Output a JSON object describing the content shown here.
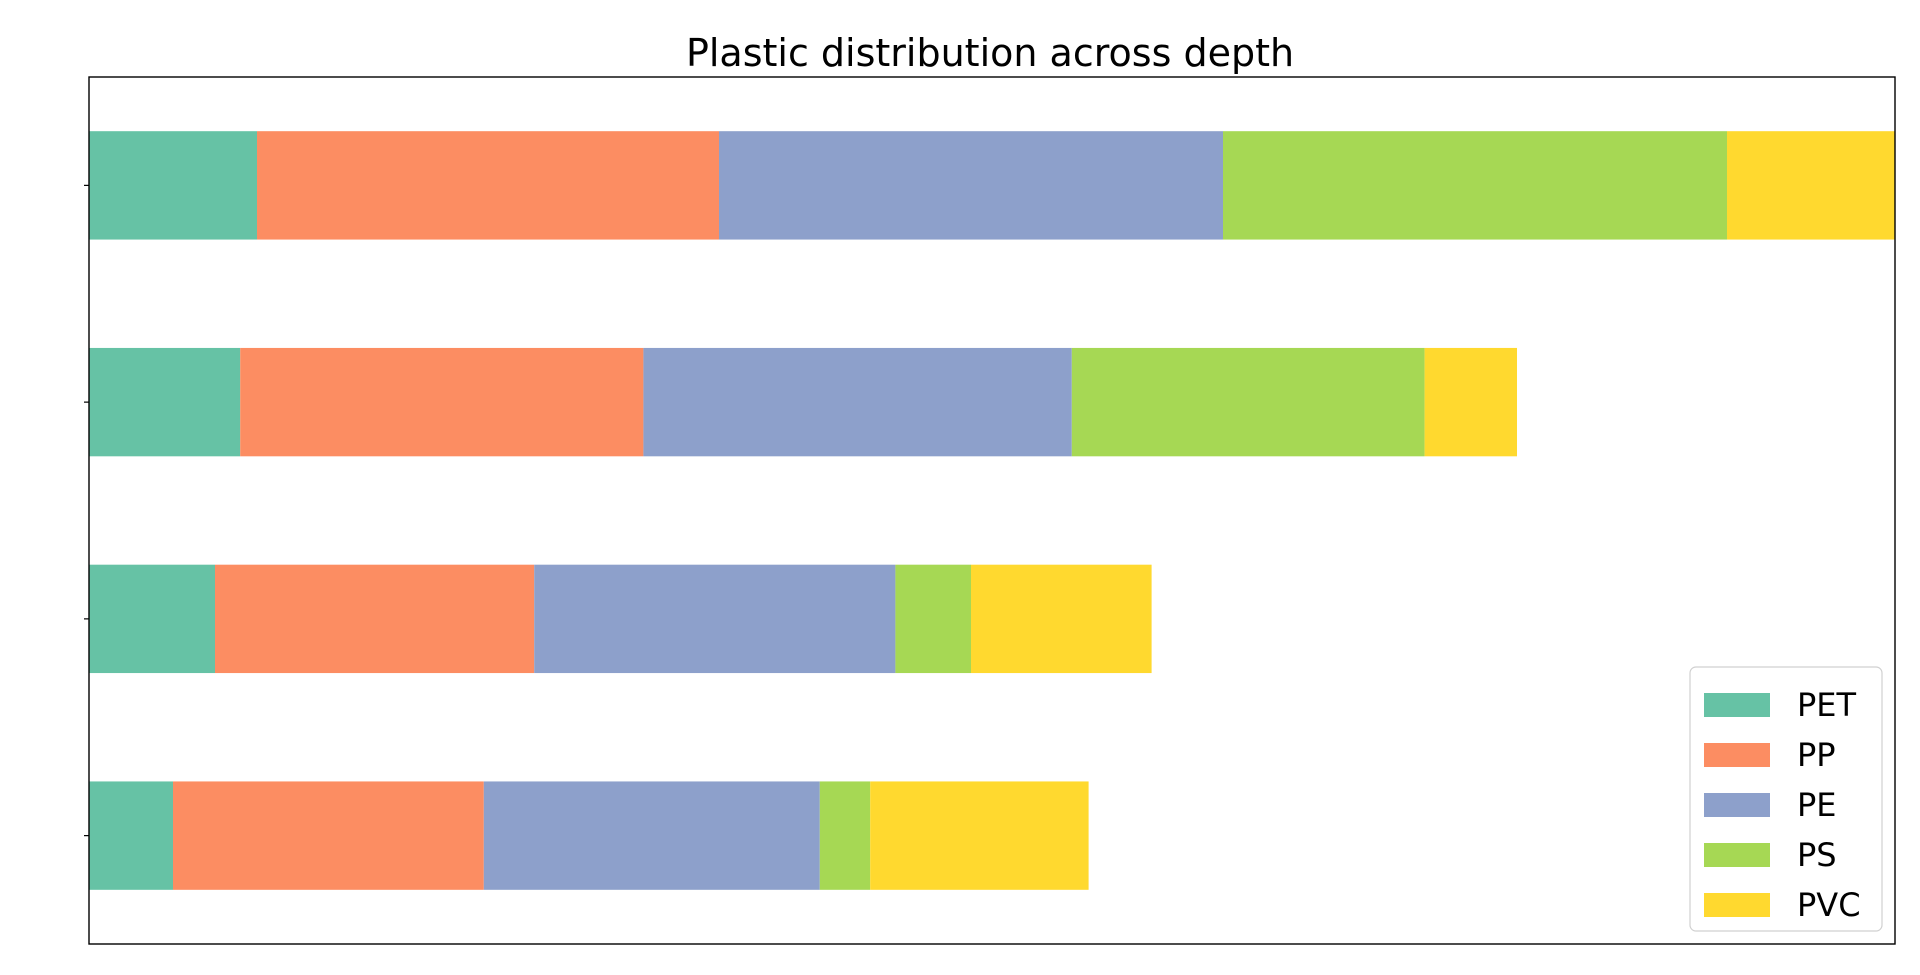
{
  "chart_data": {
    "type": "bar",
    "orientation": "horizontal",
    "stacked": true,
    "title": "Plastic distribution across depth",
    "xlabel": "",
    "ylabel": "",
    "categories": [
      "",
      "",
      "",
      ""
    ],
    "xlim": [
      0,
      215
    ],
    "series": [
      {
        "name": "PET",
        "color": "#66c2a5",
        "values": [
          10,
          15,
          18,
          20
        ]
      },
      {
        "name": "PP",
        "color": "#fc8d62",
        "values": [
          37,
          38,
          48,
          55
        ]
      },
      {
        "name": "PE",
        "color": "#8da0cb",
        "values": [
          40,
          43,
          51,
          60
        ]
      },
      {
        "name": "PS",
        "color": "#a6d854",
        "values": [
          6,
          9,
          42,
          60
        ]
      },
      {
        "name": "PVC",
        "color": "#ffd92f",
        "values": [
          26,
          21.5,
          11,
          20
        ]
      }
    ],
    "grid": false,
    "legend_position": "bottom-right",
    "show_x_ticks": false,
    "show_y_tick_labels": false
  }
}
